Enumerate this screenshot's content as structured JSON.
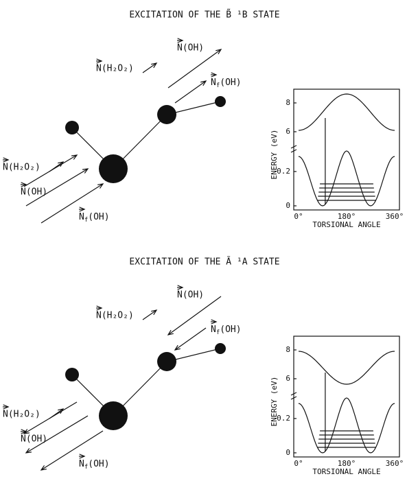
{
  "panels": [
    {
      "title": "EXCITATION OF THE B̃ ¹B STATE",
      "vectors": {
        "n_h2o2_top": "N(H₂O₂)",
        "n_oh_top": "N(OH)",
        "nf_oh_top": {
          "symbol": "N",
          "subscript": "f",
          "rest": "(OH)"
        },
        "n_h2o2_bottom": "N(H₂O₂)",
        "n_oh_bottom": "N(OH)",
        "nf_oh_bottom": {
          "symbol": "N",
          "subscript": "f",
          "rest": "(OH)"
        }
      },
      "plot": {
        "ylabel": "ENERGY (eV)",
        "yticks": [
          "8",
          "6",
          "0.2",
          "0"
        ],
        "xticks": [
          "0°",
          "180°",
          "360°"
        ],
        "xlabel": "TORSIONAL ANGLE"
      }
    },
    {
      "title": "EXCITATION OF THE Ã ¹A STATE",
      "vectors": {
        "n_h2o2_top": "N(H₂O₂)",
        "n_oh_top": "N(OH)",
        "nf_oh_top": {
          "symbol": "N",
          "subscript": "f",
          "rest": "(OH)"
        },
        "n_h2o2_bottom": "N(H₂O₂)",
        "n_oh_bottom": "N(OH)",
        "nf_oh_bottom": {
          "symbol": "N",
          "subscript": "f",
          "rest": "(OH)"
        }
      },
      "plot": {
        "ylabel": "ENERGY (eV)",
        "yticks": [
          "8",
          "6",
          "0.2",
          "0"
        ],
        "xticks": [
          "0°",
          "180°",
          "360°"
        ],
        "xlabel": "TORSIONAL ANGLE"
      }
    }
  ]
}
